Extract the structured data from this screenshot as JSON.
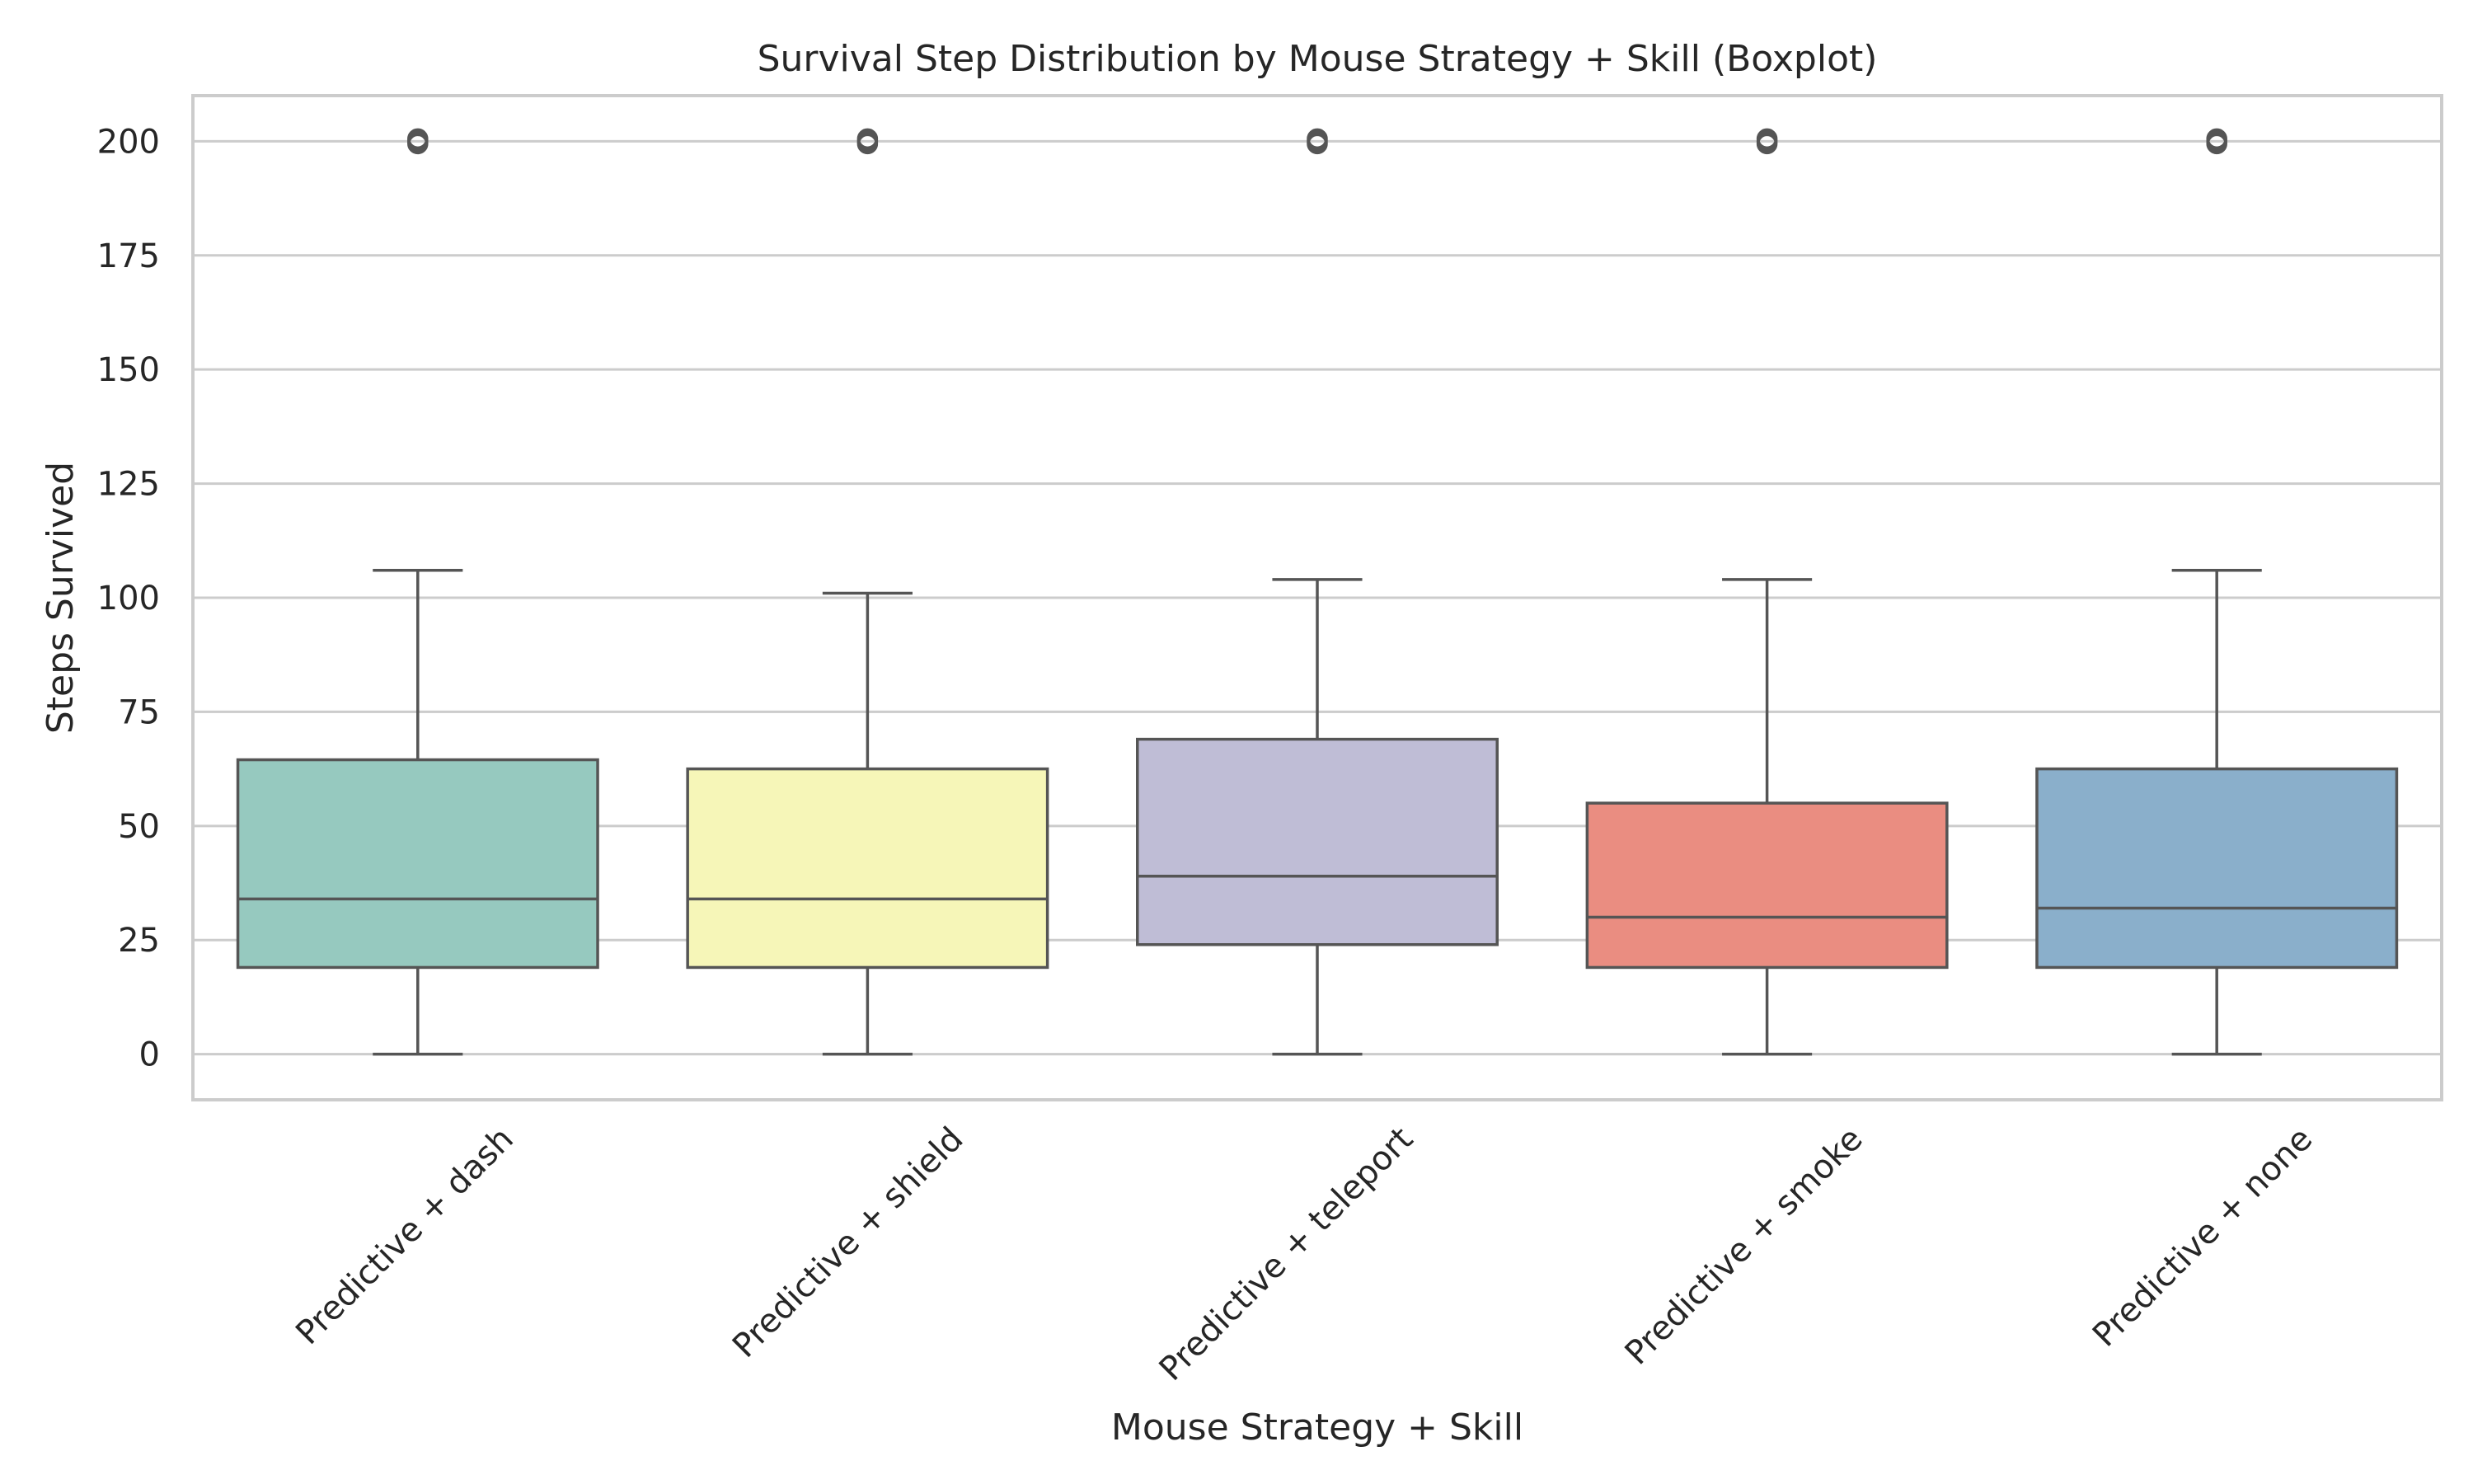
{
  "chart_data": {
    "type": "boxplot",
    "title": "Survival Step Distribution by Mouse Strategy + Skill (Boxplot)",
    "xlabel": "Mouse Strategy + Skill",
    "ylabel": "Steps Survived",
    "ylim": [
      -10,
      210
    ],
    "yticks": [
      0,
      25,
      50,
      75,
      100,
      125,
      150,
      175,
      200
    ],
    "grid": "horizontal",
    "categories": [
      "Predictive + dash",
      "Predictive + shield",
      "Predictive + teleport",
      "Predictive + smoke",
      "Predictive + none"
    ],
    "series": [
      {
        "category": "Predictive + dash",
        "whisker_low": 0,
        "q1": 19,
        "median": 34,
        "q3": 64.5,
        "whisker_high": 106,
        "outliers": [
          200
        ],
        "color": "#96c9bf"
      },
      {
        "category": "Predictive + shield",
        "whisker_low": 0,
        "q1": 19,
        "median": 34,
        "q3": 62.5,
        "whisker_high": 101,
        "outliers": [
          200
        ],
        "color": "#f6f6b8"
      },
      {
        "category": "Predictive + teleport",
        "whisker_low": 0,
        "q1": 24,
        "median": 39,
        "q3": 69,
        "whisker_high": 104,
        "outliers": [
          200
        ],
        "color": "#bfbdd6"
      },
      {
        "category": "Predictive + smoke",
        "whisker_low": 0,
        "q1": 19,
        "median": 30,
        "q3": 55,
        "whisker_high": 104,
        "outliers": [
          200
        ],
        "color": "#ea8d81"
      },
      {
        "category": "Predictive + none",
        "whisker_low": 0,
        "q1": 19,
        "median": 32,
        "q3": 62.5,
        "whisker_high": 106,
        "outliers": [
          200
        ],
        "color": "#8aafcb"
      }
    ]
  }
}
